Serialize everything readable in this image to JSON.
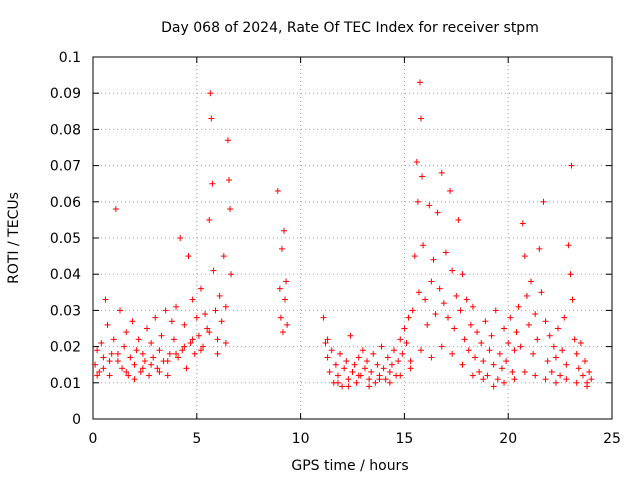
{
  "chart_data": {
    "type": "scatter",
    "title": "Day 068 of 2024, Rate Of TEC Index for receiver stpm",
    "xlabel": "GPS time / hours",
    "ylabel": "ROTI / TECUs",
    "xlim": [
      0,
      25
    ],
    "ylim": [
      0,
      0.1
    ],
    "xticks": [
      0,
      5,
      10,
      15,
      20,
      25
    ],
    "xtick_labels": [
      "0",
      "5",
      "10",
      "15",
      "20",
      "25"
    ],
    "yticks": [
      0,
      0.01,
      0.02,
      0.03,
      0.04,
      0.05,
      0.06,
      0.07,
      0.08,
      0.09,
      0.1
    ],
    "ytick_labels": [
      "0",
      "0.01",
      "0.02",
      "0.03",
      "0.04",
      "0.05",
      "0.06",
      "0.07",
      "0.08",
      "0.09",
      "0.1"
    ],
    "grid": true,
    "marker": "+",
    "color": "#ff0000",
    "series": [
      {
        "name": "ROTI",
        "points": [
          [
            0.1,
            0.015
          ],
          [
            0.2,
            0.019
          ],
          [
            0.3,
            0.013
          ],
          [
            0.4,
            0.021
          ],
          [
            0.5,
            0.017
          ],
          [
            0.6,
            0.033
          ],
          [
            0.7,
            0.026
          ],
          [
            0.8,
            0.012
          ],
          [
            0.9,
            0.018
          ],
          [
            1.0,
            0.022
          ],
          [
            1.1,
            0.058
          ],
          [
            1.2,
            0.016
          ],
          [
            1.3,
            0.03
          ],
          [
            1.4,
            0.014
          ],
          [
            1.5,
            0.02
          ],
          [
            1.6,
            0.024
          ],
          [
            1.7,
            0.012
          ],
          [
            1.8,
            0.017
          ],
          [
            1.9,
            0.027
          ],
          [
            2.0,
            0.015
          ],
          [
            2.1,
            0.019
          ],
          [
            2.2,
            0.022
          ],
          [
            2.3,
            0.013
          ],
          [
            2.4,
            0.018
          ],
          [
            2.5,
            0.016
          ],
          [
            2.6,
            0.025
          ],
          [
            2.7,
            0.012
          ],
          [
            2.8,
            0.021
          ],
          [
            2.9,
            0.017
          ],
          [
            3.0,
            0.028
          ],
          [
            3.1,
            0.014
          ],
          [
            3.2,
            0.019
          ],
          [
            3.3,
            0.023
          ],
          [
            3.4,
            0.016
          ],
          [
            3.5,
            0.03
          ],
          [
            3.6,
            0.012
          ],
          [
            3.7,
            0.018
          ],
          [
            3.8,
            0.027
          ],
          [
            3.9,
            0.022
          ],
          [
            4.0,
            0.031
          ],
          [
            4.1,
            0.017
          ],
          [
            4.2,
            0.05
          ],
          [
            4.3,
            0.019
          ],
          [
            4.4,
            0.026
          ],
          [
            4.5,
            0.014
          ],
          [
            4.6,
            0.045
          ],
          [
            4.7,
            0.021
          ],
          [
            4.8,
            0.033
          ],
          [
            4.9,
            0.018
          ],
          [
            5.0,
            0.028
          ],
          [
            5.1,
            0.023
          ],
          [
            5.2,
            0.036
          ],
          [
            5.3,
            0.02
          ],
          [
            5.4,
            0.029
          ],
          [
            5.5,
            0.025
          ],
          [
            5.6,
            0.055
          ],
          [
            5.65,
            0.09
          ],
          [
            5.7,
            0.083
          ],
          [
            5.75,
            0.065
          ],
          [
            5.8,
            0.041
          ],
          [
            5.9,
            0.03
          ],
          [
            6.0,
            0.022
          ],
          [
            6.1,
            0.034
          ],
          [
            6.2,
            0.027
          ],
          [
            6.3,
            0.045
          ],
          [
            6.4,
            0.031
          ],
          [
            6.5,
            0.077
          ],
          [
            6.55,
            0.066
          ],
          [
            6.6,
            0.058
          ],
          [
            6.65,
            0.04
          ],
          [
            8.9,
            0.063
          ],
          [
            9.0,
            0.036
          ],
          [
            9.05,
            0.028
          ],
          [
            9.1,
            0.047
          ],
          [
            9.15,
            0.024
          ],
          [
            9.2,
            0.052
          ],
          [
            9.25,
            0.033
          ],
          [
            9.3,
            0.038
          ],
          [
            9.35,
            0.026
          ],
          [
            11.1,
            0.028
          ],
          [
            11.2,
            0.021
          ],
          [
            11.3,
            0.017
          ],
          [
            11.4,
            0.013
          ],
          [
            11.5,
            0.019
          ],
          [
            11.6,
            0.01
          ],
          [
            11.7,
            0.015
          ],
          [
            11.8,
            0.012
          ],
          [
            11.9,
            0.018
          ],
          [
            12.0,
            0.009
          ],
          [
            12.1,
            0.014
          ],
          [
            12.2,
            0.016
          ],
          [
            12.3,
            0.011
          ],
          [
            12.4,
            0.023
          ],
          [
            12.5,
            0.013
          ],
          [
            12.6,
            0.015
          ],
          [
            12.7,
            0.01
          ],
          [
            12.8,
            0.017
          ],
          [
            12.9,
            0.012
          ],
          [
            13.0,
            0.019
          ],
          [
            13.1,
            0.014
          ],
          [
            13.2,
            0.016
          ],
          [
            13.3,
            0.011
          ],
          [
            13.4,
            0.013
          ],
          [
            13.5,
            0.018
          ],
          [
            13.6,
            0.01
          ],
          [
            13.7,
            0.015
          ],
          [
            13.8,
            0.012
          ],
          [
            13.9,
            0.02
          ],
          [
            14.0,
            0.014
          ],
          [
            14.1,
            0.011
          ],
          [
            14.2,
            0.017
          ],
          [
            14.3,
            0.013
          ],
          [
            14.4,
            0.015
          ],
          [
            14.5,
            0.019
          ],
          [
            14.6,
            0.012
          ],
          [
            14.7,
            0.016
          ],
          [
            14.8,
            0.022
          ],
          [
            14.9,
            0.018
          ],
          [
            15.0,
            0.025
          ],
          [
            15.1,
            0.021
          ],
          [
            15.2,
            0.028
          ],
          [
            15.3,
            0.014
          ],
          [
            15.4,
            0.03
          ],
          [
            15.5,
            0.045
          ],
          [
            15.6,
            0.071
          ],
          [
            15.65,
            0.06
          ],
          [
            15.7,
            0.035
          ],
          [
            15.75,
            0.093
          ],
          [
            15.8,
            0.083
          ],
          [
            15.85,
            0.067
          ],
          [
            15.9,
            0.048
          ],
          [
            16.0,
            0.033
          ],
          [
            16.1,
            0.026
          ],
          [
            16.2,
            0.059
          ],
          [
            16.3,
            0.038
          ],
          [
            16.4,
            0.044
          ],
          [
            16.5,
            0.029
          ],
          [
            16.6,
            0.057
          ],
          [
            16.7,
            0.036
          ],
          [
            16.8,
            0.068
          ],
          [
            16.9,
            0.032
          ],
          [
            17.0,
            0.046
          ],
          [
            17.1,
            0.028
          ],
          [
            17.2,
            0.063
          ],
          [
            17.3,
            0.041
          ],
          [
            17.4,
            0.025
          ],
          [
            17.5,
            0.034
          ],
          [
            17.6,
            0.055
          ],
          [
            17.7,
            0.03
          ],
          [
            17.8,
            0.04
          ],
          [
            17.9,
            0.022
          ],
          [
            18.0,
            0.033
          ],
          [
            18.1,
            0.019
          ],
          [
            18.2,
            0.026
          ],
          [
            18.3,
            0.031
          ],
          [
            18.4,
            0.017
          ],
          [
            18.5,
            0.024
          ],
          [
            18.6,
            0.013
          ],
          [
            18.7,
            0.021
          ],
          [
            18.8,
            0.016
          ],
          [
            18.9,
            0.027
          ],
          [
            19.0,
            0.012
          ],
          [
            19.1,
            0.019
          ],
          [
            19.2,
            0.023
          ],
          [
            19.3,
            0.015
          ],
          [
            19.4,
            0.03
          ],
          [
            19.5,
            0.011
          ],
          [
            19.6,
            0.018
          ],
          [
            19.7,
            0.014
          ],
          [
            19.8,
            0.025
          ],
          [
            19.9,
            0.016
          ],
          [
            20.0,
            0.021
          ],
          [
            20.1,
            0.028
          ],
          [
            20.2,
            0.013
          ],
          [
            20.3,
            0.019
          ],
          [
            20.4,
            0.024
          ],
          [
            20.5,
            0.031
          ],
          [
            20.6,
            0.02
          ],
          [
            20.7,
            0.054
          ],
          [
            20.8,
            0.045
          ],
          [
            20.9,
            0.034
          ],
          [
            21.0,
            0.026
          ],
          [
            21.1,
            0.038
          ],
          [
            21.2,
            0.018
          ],
          [
            21.3,
            0.029
          ],
          [
            21.4,
            0.022
          ],
          [
            21.5,
            0.047
          ],
          [
            21.6,
            0.035
          ],
          [
            21.7,
            0.06
          ],
          [
            21.8,
            0.027
          ],
          [
            21.9,
            0.016
          ],
          [
            22.0,
            0.023
          ],
          [
            22.1,
            0.013
          ],
          [
            22.2,
            0.02
          ],
          [
            22.3,
            0.017
          ],
          [
            22.4,
            0.025
          ],
          [
            22.5,
            0.012
          ],
          [
            22.6,
            0.019
          ],
          [
            22.7,
            0.028
          ],
          [
            22.8,
            0.015
          ],
          [
            22.9,
            0.048
          ],
          [
            23.0,
            0.04
          ],
          [
            23.05,
            0.07
          ],
          [
            23.1,
            0.033
          ],
          [
            23.2,
            0.022
          ],
          [
            23.3,
            0.018
          ],
          [
            23.4,
            0.014
          ],
          [
            23.5,
            0.021
          ],
          [
            23.6,
            0.012
          ],
          [
            23.7,
            0.016
          ],
          [
            23.8,
            0.01
          ],
          [
            23.9,
            0.013
          ],
          [
            24.0,
            0.011
          ],
          [
            0.2,
            0.012
          ],
          [
            0.5,
            0.014
          ],
          [
            0.8,
            0.016
          ],
          [
            1.2,
            0.018
          ],
          [
            1.6,
            0.013
          ],
          [
            2.0,
            0.011
          ],
          [
            2.4,
            0.014
          ],
          [
            2.8,
            0.015
          ],
          [
            3.2,
            0.013
          ],
          [
            3.6,
            0.016
          ],
          [
            4.0,
            0.018
          ],
          [
            4.4,
            0.02
          ],
          [
            4.8,
            0.022
          ],
          [
            5.2,
            0.019
          ],
          [
            5.6,
            0.024
          ],
          [
            6.0,
            0.018
          ],
          [
            6.4,
            0.021
          ],
          [
            11.3,
            0.022
          ],
          [
            11.8,
            0.01
          ],
          [
            12.3,
            0.009
          ],
          [
            12.8,
            0.012
          ],
          [
            13.3,
            0.009
          ],
          [
            13.8,
            0.011
          ],
          [
            14.3,
            0.01
          ],
          [
            14.8,
            0.012
          ],
          [
            15.3,
            0.016
          ],
          [
            15.8,
            0.019
          ],
          [
            16.3,
            0.017
          ],
          [
            16.8,
            0.02
          ],
          [
            17.3,
            0.018
          ],
          [
            17.8,
            0.015
          ],
          [
            18.3,
            0.012
          ],
          [
            18.8,
            0.011
          ],
          [
            19.3,
            0.009
          ],
          [
            19.8,
            0.01
          ],
          [
            20.3,
            0.011
          ],
          [
            20.8,
            0.013
          ],
          [
            21.3,
            0.012
          ],
          [
            21.8,
            0.011
          ],
          [
            22.3,
            0.01
          ],
          [
            22.8,
            0.011
          ],
          [
            23.3,
            0.01
          ],
          [
            23.8,
            0.009
          ]
        ]
      }
    ]
  }
}
